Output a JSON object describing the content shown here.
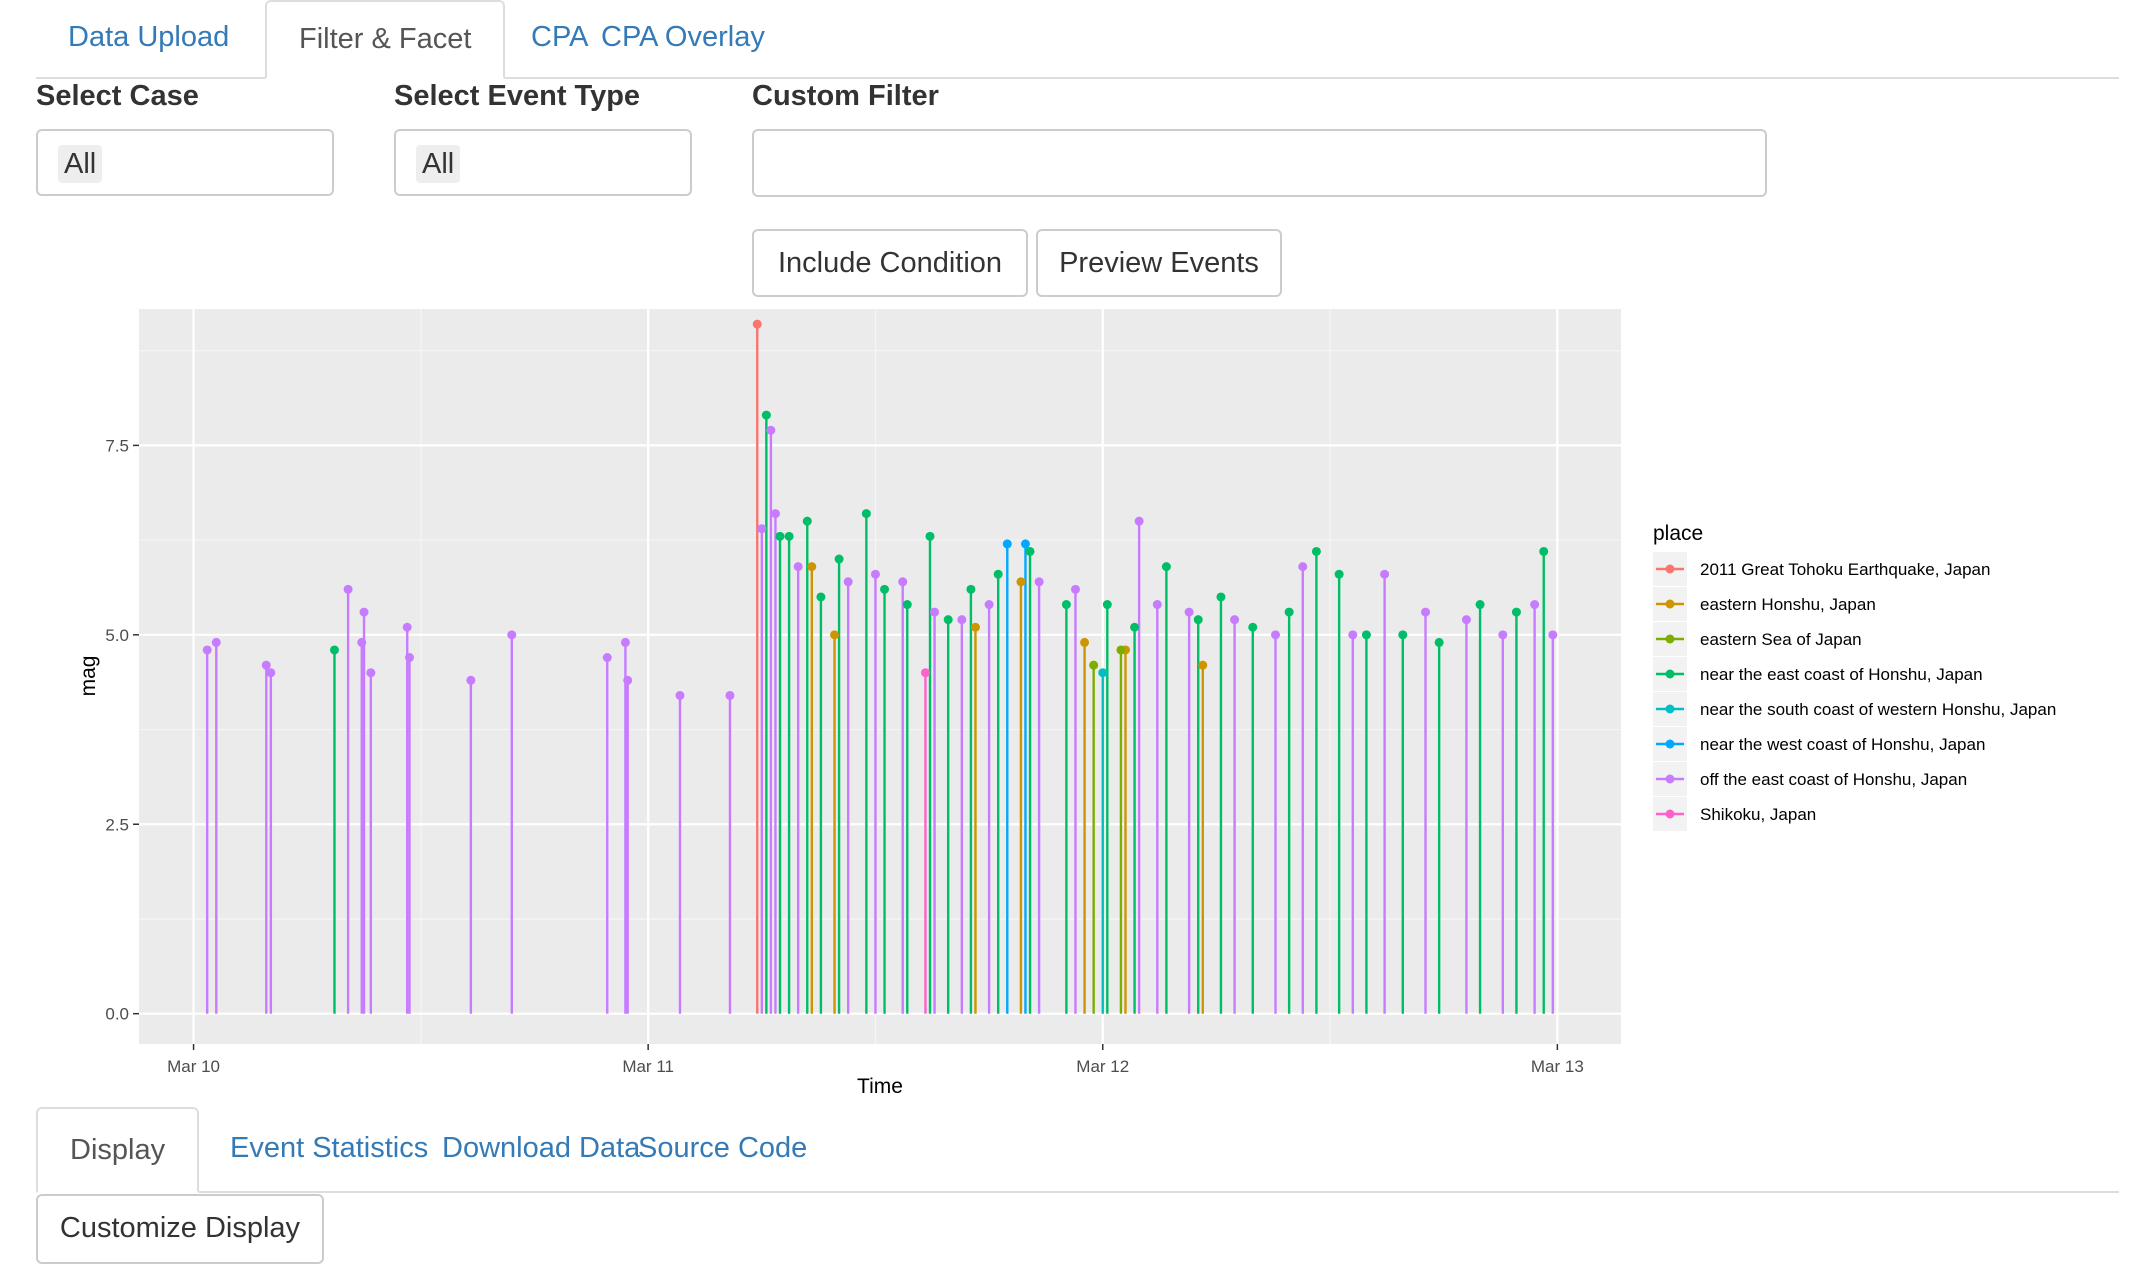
{
  "tabs": [
    {
      "label": "Data Upload",
      "active": false
    },
    {
      "label": "Filter & Facet",
      "active": true
    },
    {
      "label": "CPA",
      "active": false
    },
    {
      "label": "CPA Overlay",
      "active": false
    }
  ],
  "filters": {
    "case_label": "Select Case",
    "case_value": "All",
    "event_type_label": "Select Event Type",
    "event_type_value": "All",
    "custom_label": "Custom Filter",
    "custom_value": ""
  },
  "buttons": {
    "include_condition": "Include Condition",
    "preview_events": "Preview Events",
    "customize_display": "Customize Display"
  },
  "bottom_tabs": [
    {
      "label": "Display",
      "active": true
    },
    {
      "label": "Event Statistics",
      "active": false
    },
    {
      "label": "Download Data",
      "active": false
    },
    {
      "label": "Source Code",
      "active": false
    }
  ],
  "chart_data": {
    "type": "lollipop",
    "xlabel": "Time",
    "ylabel": "mag",
    "x_ticks": [
      "Mar 10",
      "Mar 11",
      "Mar 12",
      "Mar 13"
    ],
    "y_ticks": [
      "0.0",
      "2.5",
      "5.0",
      "7.5"
    ],
    "ylim": [
      -0.4,
      9.3
    ],
    "xlim_days": [
      -0.12,
      3.14
    ],
    "grid": true,
    "background": "#ebebeb",
    "legend_title": "place",
    "legend_position": "right",
    "series": [
      {
        "name": "2011 Great Tohoku Earthquake, Japan",
        "color": "#F8766D",
        "points": [
          [
            1.24,
            9.1
          ]
        ]
      },
      {
        "name": "eastern Honshu, Japan",
        "color": "#CD9600",
        "points": [
          [
            1.36,
            5.9
          ],
          [
            1.41,
            5.0
          ],
          [
            1.72,
            5.1
          ],
          [
            1.82,
            5.7
          ],
          [
            1.96,
            4.9
          ],
          [
            2.05,
            4.8
          ],
          [
            2.22,
            4.6
          ]
        ]
      },
      {
        "name": "eastern Sea of Japan",
        "color": "#7CAE00",
        "points": [
          [
            1.98,
            4.6
          ],
          [
            2.04,
            4.8
          ]
        ]
      },
      {
        "name": "near the east coast of Honshu, Japan",
        "color": "#00BE67",
        "points": [
          [
            0.31,
            4.8
          ],
          [
            1.26,
            7.9
          ],
          [
            1.29,
            6.3
          ],
          [
            1.31,
            6.3
          ],
          [
            1.35,
            6.5
          ],
          [
            1.38,
            5.5
          ],
          [
            1.42,
            6.0
          ],
          [
            1.48,
            6.6
          ],
          [
            1.52,
            5.6
          ],
          [
            1.57,
            5.4
          ],
          [
            1.62,
            6.3
          ],
          [
            1.66,
            5.2
          ],
          [
            1.71,
            5.6
          ],
          [
            1.77,
            5.8
          ],
          [
            1.84,
            6.1
          ],
          [
            1.92,
            5.4
          ],
          [
            2.01,
            5.4
          ],
          [
            2.07,
            5.1
          ],
          [
            2.14,
            5.9
          ],
          [
            2.21,
            5.2
          ],
          [
            2.26,
            5.5
          ],
          [
            2.33,
            5.1
          ],
          [
            2.41,
            5.3
          ],
          [
            2.47,
            6.1
          ],
          [
            2.52,
            5.8
          ],
          [
            2.58,
            5.0
          ],
          [
            2.66,
            5.0
          ],
          [
            2.74,
            4.9
          ],
          [
            2.83,
            5.4
          ],
          [
            2.91,
            5.3
          ],
          [
            2.97,
            6.1
          ]
        ]
      },
      {
        "name": "near the south coast of western Honshu, Japan",
        "color": "#00BFC4",
        "points": [
          [
            2.0,
            4.5
          ]
        ]
      },
      {
        "name": "near the west coast of Honshu, Japan",
        "color": "#00A9FF",
        "points": [
          [
            1.79,
            6.2
          ],
          [
            1.83,
            6.2
          ]
        ]
      },
      {
        "name": "off the east coast of Honshu, Japan",
        "color": "#C77CFF",
        "points": [
          [
            0.03,
            4.8
          ],
          [
            0.05,
            4.9
          ],
          [
            0.16,
            4.6
          ],
          [
            0.17,
            4.5
          ],
          [
            0.34,
            5.6
          ],
          [
            0.37,
            4.9
          ],
          [
            0.375,
            5.3
          ],
          [
            0.39,
            4.5
          ],
          [
            0.47,
            5.1
          ],
          [
            0.475,
            4.7
          ],
          [
            0.61,
            4.4
          ],
          [
            0.7,
            5.0
          ],
          [
            0.91,
            4.7
          ],
          [
            0.95,
            4.9
          ],
          [
            0.955,
            4.4
          ],
          [
            1.07,
            4.2
          ],
          [
            1.18,
            4.2
          ],
          [
            1.25,
            6.4
          ],
          [
            1.27,
            7.7
          ],
          [
            1.28,
            6.6
          ],
          [
            1.33,
            5.9
          ],
          [
            1.44,
            5.7
          ],
          [
            1.5,
            5.8
          ],
          [
            1.56,
            5.7
          ],
          [
            1.63,
            5.3
          ],
          [
            1.69,
            5.2
          ],
          [
            1.75,
            5.4
          ],
          [
            1.86,
            5.7
          ],
          [
            1.94,
            5.6
          ],
          [
            2.08,
            6.5
          ],
          [
            2.12,
            5.4
          ],
          [
            2.19,
            5.3
          ],
          [
            2.29,
            5.2
          ],
          [
            2.38,
            5.0
          ],
          [
            2.44,
            5.9
          ],
          [
            2.55,
            5.0
          ],
          [
            2.62,
            5.8
          ],
          [
            2.71,
            5.3
          ],
          [
            2.8,
            5.2
          ],
          [
            2.88,
            5.0
          ],
          [
            2.95,
            5.4
          ],
          [
            2.99,
            5.0
          ]
        ]
      },
      {
        "name": "Shikoku, Japan",
        "color": "#FF61CC",
        "points": [
          [
            1.61,
            4.5
          ]
        ]
      }
    ]
  }
}
